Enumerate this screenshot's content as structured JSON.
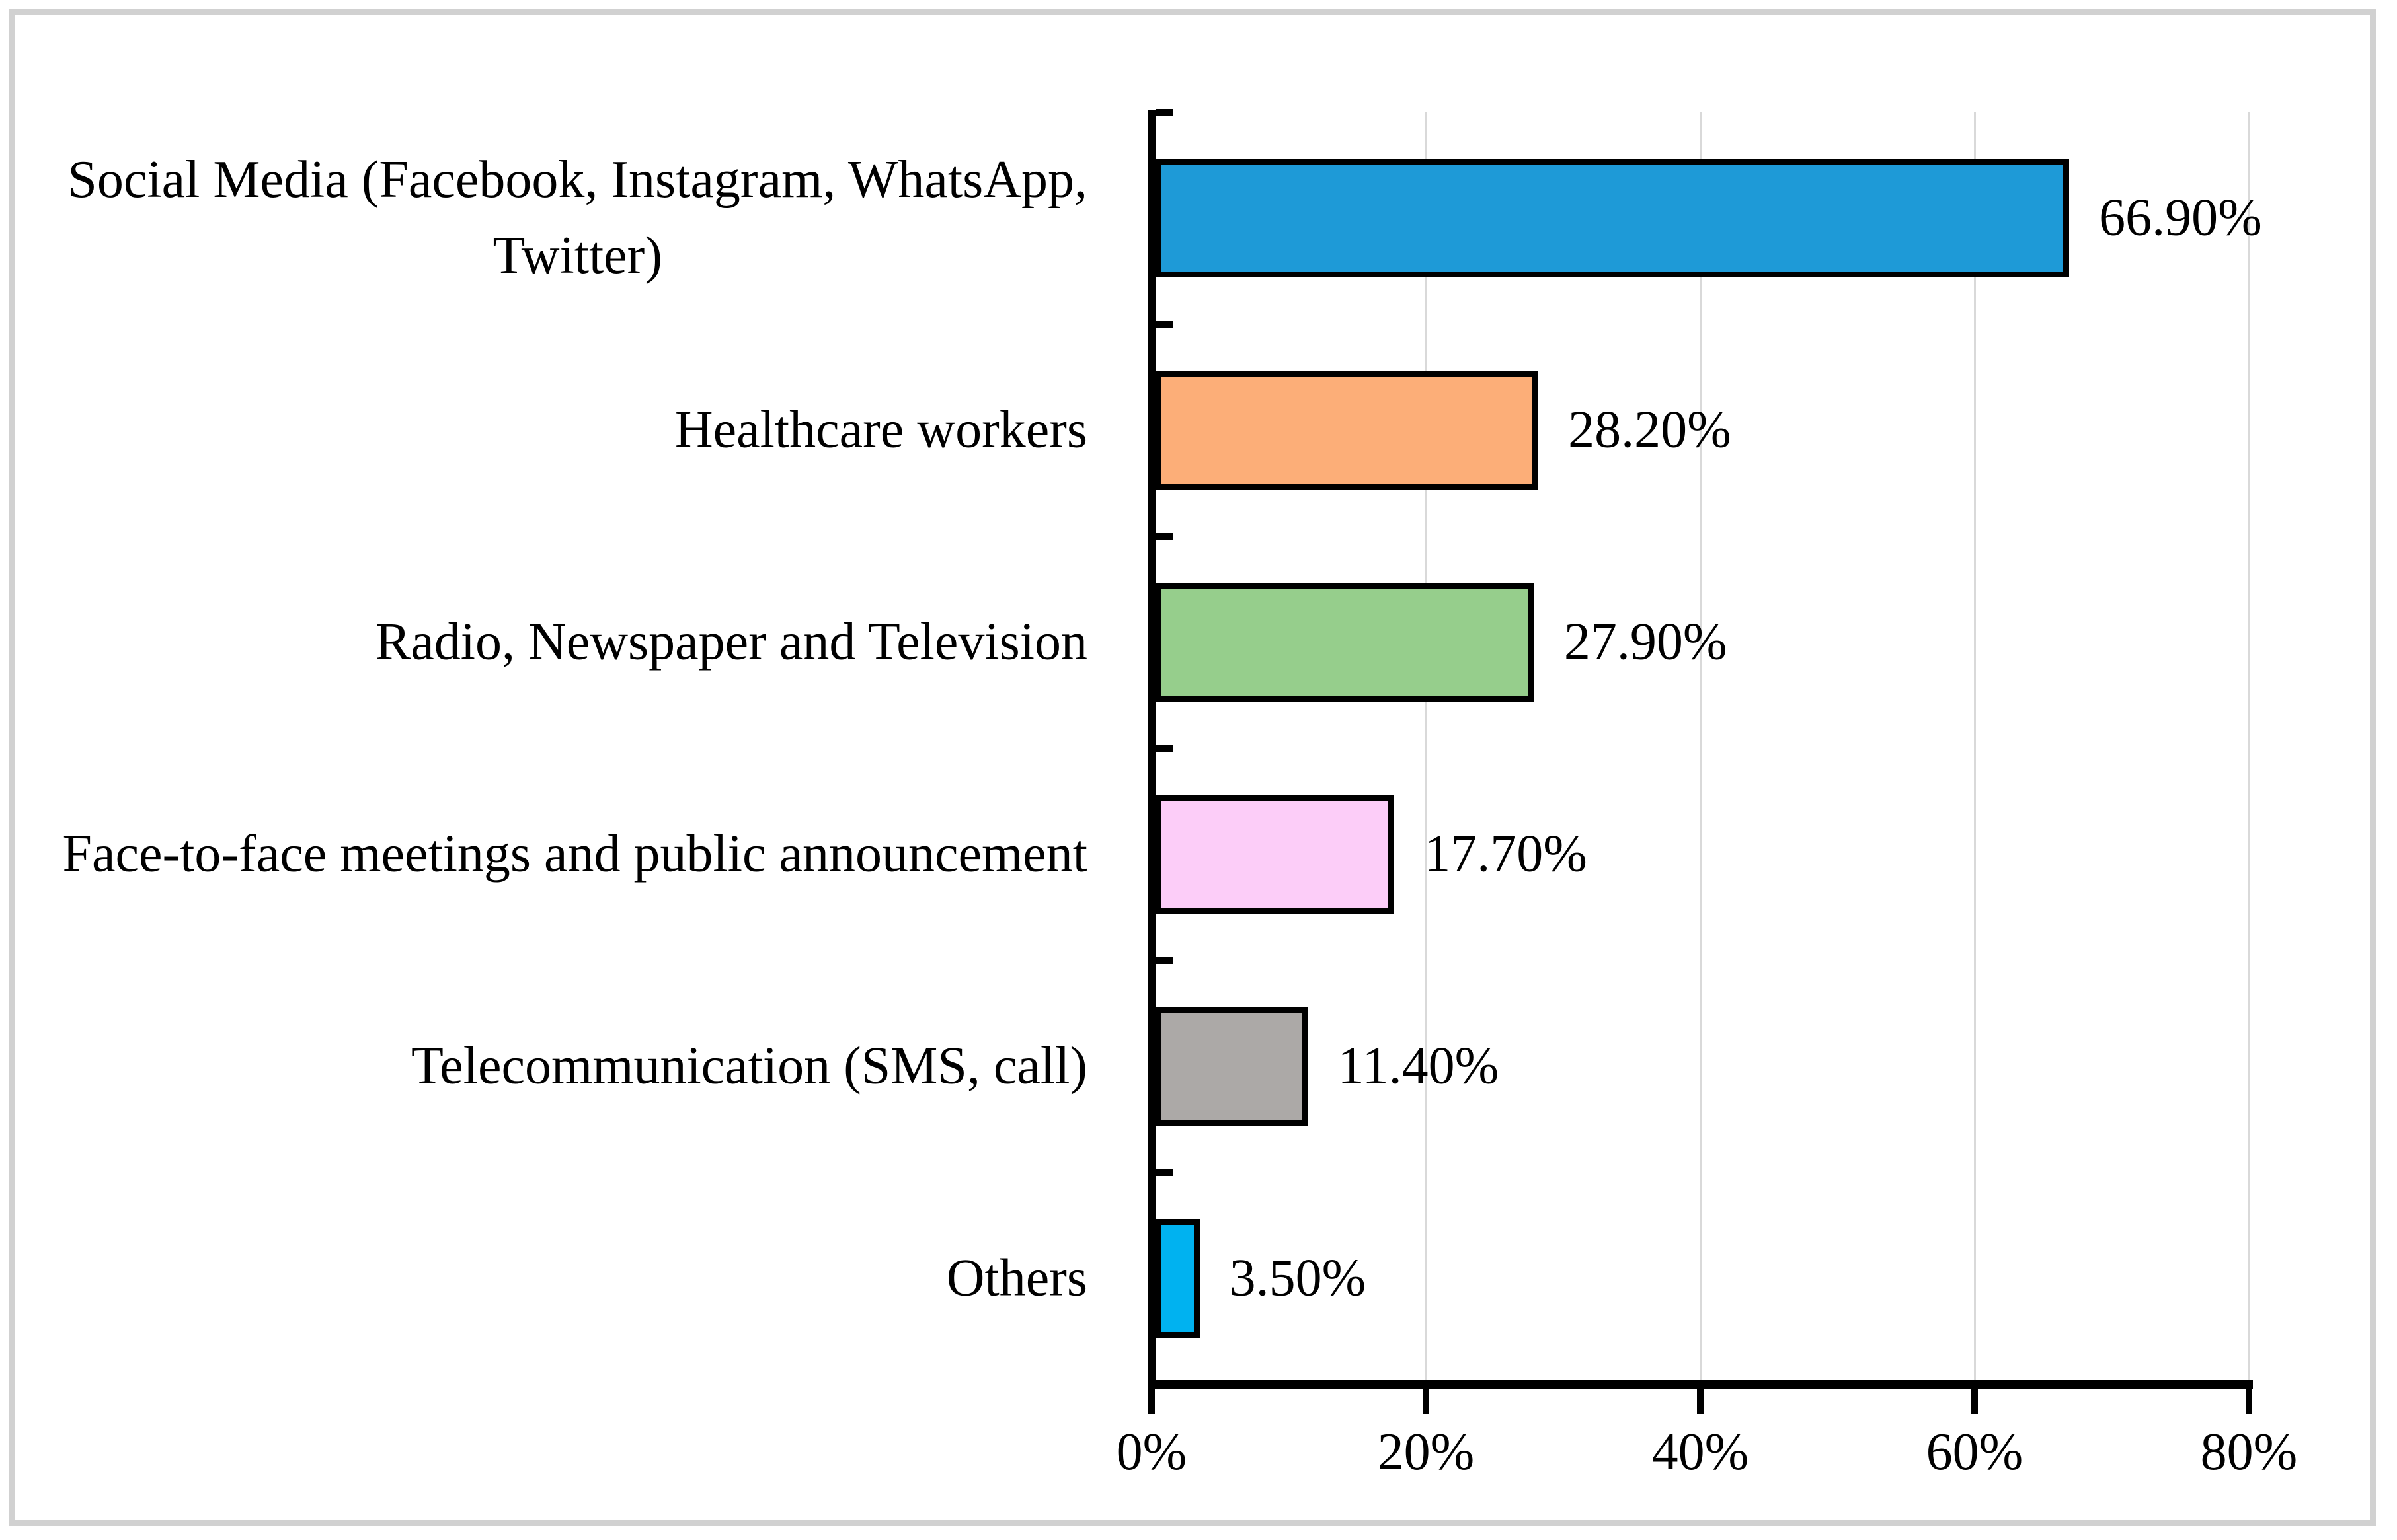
{
  "chart_data": {
    "type": "bar",
    "orientation": "horizontal",
    "title": "",
    "xlabel": "",
    "ylabel": "",
    "categories": [
      "Social Media (Facebook, Instagram, WhatsApp, Twitter)",
      "Healthcare workers",
      "Radio, Newspaper and Television",
      "Face-to-face meetings and public announcement",
      "Telecommunication (SMS, call)",
      "Others"
    ],
    "display_labels": [
      "Social Media (Facebook, Instagram, WhatsApp,\nTwitter)",
      "Healthcare workers",
      "Radio, Newspaper and Television",
      "Face-to-face meetings and public announcement",
      "Telecommunication (SMS, call)",
      "Others"
    ],
    "values": [
      66.9,
      28.2,
      27.9,
      17.7,
      11.4,
      3.5
    ],
    "value_labels": [
      "66.90%",
      "28.20%",
      "27.90%",
      "17.70%",
      "11.40%",
      "3.50%"
    ],
    "bar_colors": [
      "#1E9AD7",
      "#FCAE78",
      "#96CE8C",
      "#FCCDF8",
      "#ACA9A7",
      "#00B2F0"
    ],
    "x_axis": {
      "min": 0,
      "max": 80,
      "tick_step": 20,
      "tick_labels": [
        "0%",
        "20%",
        "40%",
        "60%",
        "80%"
      ]
    },
    "grid": true,
    "legend": false,
    "data_labels": true
  },
  "colors": {
    "gridline": "#D9D9D9",
    "axis": "#000000",
    "bar_border": "#000000",
    "frame_border": "#D1D1D1",
    "background": "#FFFFFF",
    "text": "#000000"
  }
}
